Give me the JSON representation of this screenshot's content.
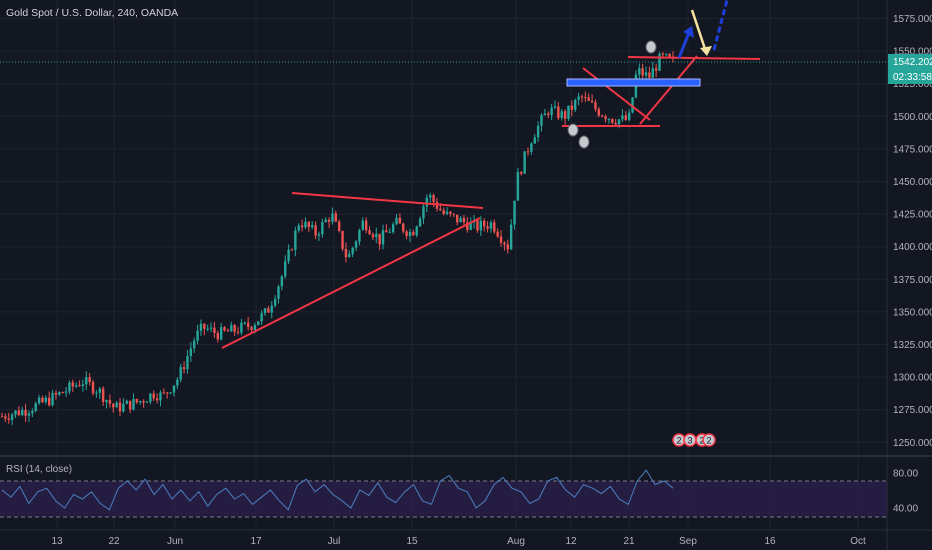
{
  "header": {
    "symbol_title": "Gold Spot / U.S. Dollar, 240, OANDA"
  },
  "price_axis": {
    "ticks": [
      "1575.000",
      "1550.000",
      "1525.000",
      "1500.000",
      "1475.000",
      "1450.000",
      "1425.000",
      "1400.000",
      "1375.000",
      "1350.000",
      "1325.000",
      "1300.000",
      "1275.000",
      "1250.000"
    ],
    "last_price": "1542.202",
    "countdown": "02:33:58"
  },
  "rsi": {
    "label": "RSI (14, close)",
    "ticks": [
      "80.00",
      "40.00"
    ],
    "upper_band": 70,
    "lower_band": 30
  },
  "time_axis": {
    "labels": [
      "13",
      "22",
      "Jun",
      "17",
      "Jul",
      "15",
      "Aug",
      "12",
      "21",
      "Sep",
      "16",
      "Oct"
    ]
  },
  "event_badges": [
    "2",
    "3",
    "2",
    "2"
  ],
  "colors": {
    "background": "#131722",
    "up_candle": "#26a69a",
    "down_candle": "#ef5350",
    "trendline": "#f23645",
    "rsi_line": "#4a7fc1",
    "rsi_fill": "#2a1f4a",
    "blue_box": "#2962ff",
    "projection_blue": "#1e3fd9",
    "projection_yellow": "#f6e3a1",
    "last_price_tag": "#26a69a"
  },
  "chart_data": {
    "type": "candlestick",
    "title": "Gold Spot / U.S. Dollar, 240, OANDA",
    "ylim": [
      1240,
      1590
    ],
    "close_path": [
      [
        0,
        1270
      ],
      [
        0.03,
        1275
      ],
      [
        0.06,
        1283
      ],
      [
        0.1,
        1297
      ],
      [
        0.12,
        1290
      ],
      [
        0.14,
        1276
      ],
      [
        0.17,
        1281
      ],
      [
        0.19,
        1288
      ],
      [
        0.2,
        1285
      ],
      [
        0.22,
        1300
      ],
      [
        0.24,
        1330
      ],
      [
        0.25,
        1338
      ],
      [
        0.27,
        1333
      ],
      [
        0.29,
        1336
      ],
      [
        0.31,
        1340
      ],
      [
        0.33,
        1350
      ],
      [
        0.35,
        1380
      ],
      [
        0.37,
        1420
      ],
      [
        0.39,
        1410
      ],
      [
        0.41,
        1425
      ],
      [
        0.43,
        1390
      ],
      [
        0.45,
        1420
      ],
      [
        0.47,
        1405
      ],
      [
        0.49,
        1418
      ],
      [
        0.51,
        1410
      ],
      [
        0.53,
        1440
      ],
      [
        0.55,
        1425
      ],
      [
        0.57,
        1420
      ],
      [
        0.59,
        1415
      ],
      [
        0.61,
        1418
      ],
      [
        0.63,
        1400
      ],
      [
        0.64,
        1450
      ],
      [
        0.66,
        1485
      ],
      [
        0.68,
        1505
      ],
      [
        0.7,
        1500
      ],
      [
        0.72,
        1515
      ],
      [
        0.74,
        1505
      ],
      [
        0.76,
        1498
      ],
      [
        0.78,
        1497
      ],
      [
        0.79,
        1535
      ],
      [
        0.805,
        1530
      ],
      [
        0.82,
        1545
      ],
      [
        0.835,
        1542
      ]
    ],
    "rsi_ylim": [
      20,
      90
    ],
    "rsi_values": [
      60,
      52,
      64,
      45,
      58,
      62,
      48,
      40,
      55,
      50,
      58,
      45,
      38,
      62,
      70,
      60,
      72,
      55,
      66,
      50,
      60,
      48,
      58,
      42,
      55,
      62,
      50,
      56,
      44,
      52,
      60,
      48,
      38,
      65,
      72,
      58,
      66,
      55,
      48,
      40,
      60,
      54,
      68,
      52,
      46,
      58,
      66,
      48,
      44,
      70,
      76,
      62,
      58,
      40,
      48,
      66,
      74,
      62,
      58,
      45,
      50,
      70,
      74,
      60,
      52,
      66,
      62,
      56,
      64,
      50,
      44,
      70,
      82,
      66,
      70,
      62
    ]
  }
}
